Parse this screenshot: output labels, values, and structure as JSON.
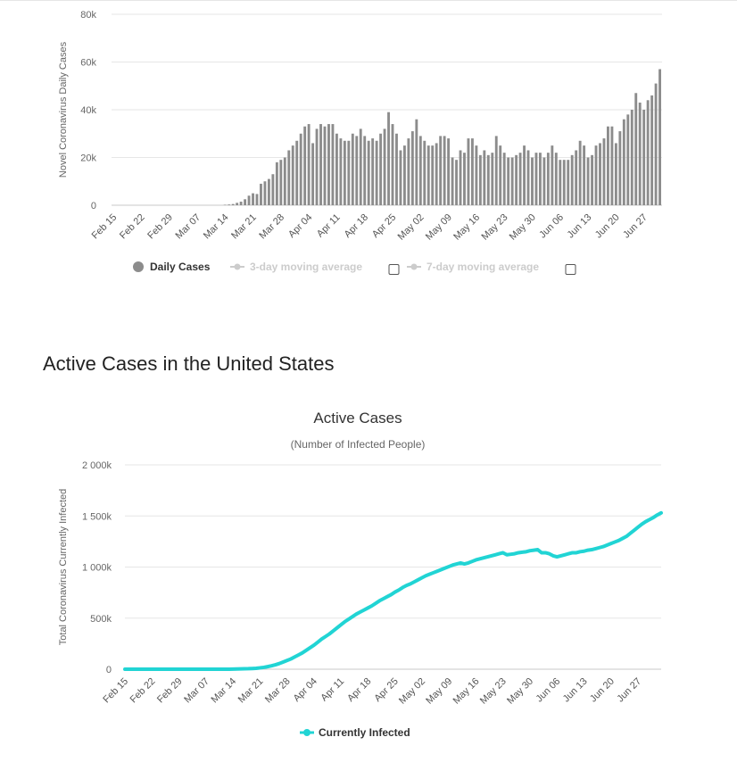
{
  "section_heading": "Active Cases in the United States",
  "colors": {
    "bars": "#8c8c8c",
    "line": "#21d4d4",
    "legend_dim": "#cccccc",
    "grid": "#e6e6e6"
  },
  "chart_data": [
    {
      "type": "bar",
      "ylabel": "Novel Coronavirus Daily Cases",
      "ylim": [
        0,
        80000
      ],
      "y_ticks": [
        "0",
        "20k",
        "40k",
        "60k",
        "80k"
      ],
      "y_tick_values": [
        0,
        20000,
        40000,
        60000,
        80000
      ],
      "x_tick_labels": [
        "Feb 15",
        "Feb 22",
        "Feb 29",
        "Mar 07",
        "Mar 14",
        "Mar 21",
        "Mar 28",
        "Apr 04",
        "Apr 11",
        "Apr 18",
        "Apr 25",
        "May 02",
        "May 09",
        "May 16",
        "May 23",
        "May 30",
        "Jun 06",
        "Jun 13",
        "Jun 20",
        "Jun 27"
      ],
      "start_date": "Feb 15",
      "values": [
        0,
        0,
        0,
        0,
        0,
        0,
        0,
        0,
        0,
        0,
        0,
        0,
        0,
        0,
        0,
        0,
        0,
        0,
        0,
        0,
        0,
        0,
        0,
        0,
        0,
        0,
        0,
        0,
        200,
        300,
        500,
        1000,
        1500,
        2500,
        4000,
        5000,
        4700,
        9000,
        10000,
        11000,
        13000,
        18000,
        19000,
        20000,
        23000,
        25000,
        27000,
        30000,
        33000,
        34000,
        26000,
        32000,
        34000,
        33000,
        34000,
        34000,
        30000,
        28000,
        27000,
        27000,
        30000,
        29000,
        32000,
        29000,
        27000,
        28000,
        27000,
        30000,
        32000,
        39000,
        34000,
        30000,
        23000,
        25000,
        28000,
        31000,
        36000,
        29000,
        27000,
        25000,
        25000,
        26000,
        29000,
        29000,
        28000,
        20000,
        19000,
        23000,
        22000,
        28000,
        28000,
        25000,
        21000,
        23000,
        21000,
        22000,
        29000,
        25000,
        22000,
        20000,
        20000,
        21000,
        22000,
        25000,
        23000,
        20000,
        22000,
        22000,
        20000,
        22000,
        25000,
        22000,
        19000,
        19000,
        19000,
        21000,
        23000,
        27000,
        25000,
        20000,
        21000,
        25000,
        26000,
        28000,
        33000,
        33000,
        26000,
        31000,
        36000,
        38000,
        40000,
        47000,
        43000,
        40000,
        44000,
        46000,
        51000,
        57000
      ],
      "legend": [
        {
          "name": "Daily Cases",
          "active": true
        },
        {
          "name": "3-day moving average",
          "active": false,
          "checkbox": true
        },
        {
          "name": "7-day moving average",
          "active": false,
          "checkbox": true
        }
      ]
    },
    {
      "type": "line",
      "title": "Active Cases",
      "subtitle": "(Number of Infected People)",
      "ylabel": "Total Coronavirus Currently Infected",
      "ylim": [
        0,
        2000000
      ],
      "y_ticks": [
        "0",
        "500k",
        "1 000k",
        "1 500k",
        "2 000k"
      ],
      "y_tick_values": [
        0,
        500000,
        1000000,
        1500000,
        2000000
      ],
      "x_tick_labels": [
        "Feb 15",
        "Feb 22",
        "Feb 29",
        "Mar 07",
        "Mar 14",
        "Mar 21",
        "Mar 28",
        "Apr 04",
        "Apr 11",
        "Apr 18",
        "Apr 25",
        "May 02",
        "May 09",
        "May 16",
        "May 23",
        "May 30",
        "Jun 06",
        "Jun 13",
        "Jun 20",
        "Jun 27"
      ],
      "start_date": "Feb 15",
      "series": [
        {
          "name": "Currently Infected",
          "values": [
            0,
            0,
            0,
            0,
            0,
            0,
            0,
            0,
            0,
            0,
            0,
            0,
            0,
            0,
            0,
            0,
            0,
            0,
            0,
            0,
            0,
            0,
            0,
            0,
            0,
            0,
            0,
            0,
            1000,
            2000,
            3000,
            4000,
            5000,
            7000,
            9000,
            13000,
            18000,
            25000,
            33000,
            43000,
            55000,
            70000,
            85000,
            100000,
            120000,
            140000,
            160000,
            185000,
            210000,
            235000,
            265000,
            295000,
            320000,
            345000,
            375000,
            405000,
            435000,
            465000,
            490000,
            515000,
            540000,
            560000,
            580000,
            600000,
            620000,
            645000,
            670000,
            690000,
            710000,
            730000,
            755000,
            775000,
            800000,
            820000,
            835000,
            855000,
            875000,
            895000,
            915000,
            930000,
            945000,
            960000,
            975000,
            990000,
            1005000,
            1020000,
            1030000,
            1040000,
            1030000,
            1040000,
            1055000,
            1070000,
            1080000,
            1090000,
            1100000,
            1110000,
            1120000,
            1130000,
            1140000,
            1120000,
            1125000,
            1130000,
            1140000,
            1145000,
            1150000,
            1160000,
            1165000,
            1170000,
            1140000,
            1140000,
            1130000,
            1110000,
            1100000,
            1110000,
            1120000,
            1130000,
            1140000,
            1140000,
            1150000,
            1155000,
            1165000,
            1170000,
            1180000,
            1190000,
            1200000,
            1215000,
            1230000,
            1245000,
            1260000,
            1280000,
            1300000,
            1330000,
            1360000,
            1390000,
            1420000,
            1445000,
            1465000,
            1485000,
            1510000,
            1530000
          ]
        }
      ],
      "legend": [
        {
          "name": "Currently Infected",
          "active": true
        }
      ]
    }
  ]
}
